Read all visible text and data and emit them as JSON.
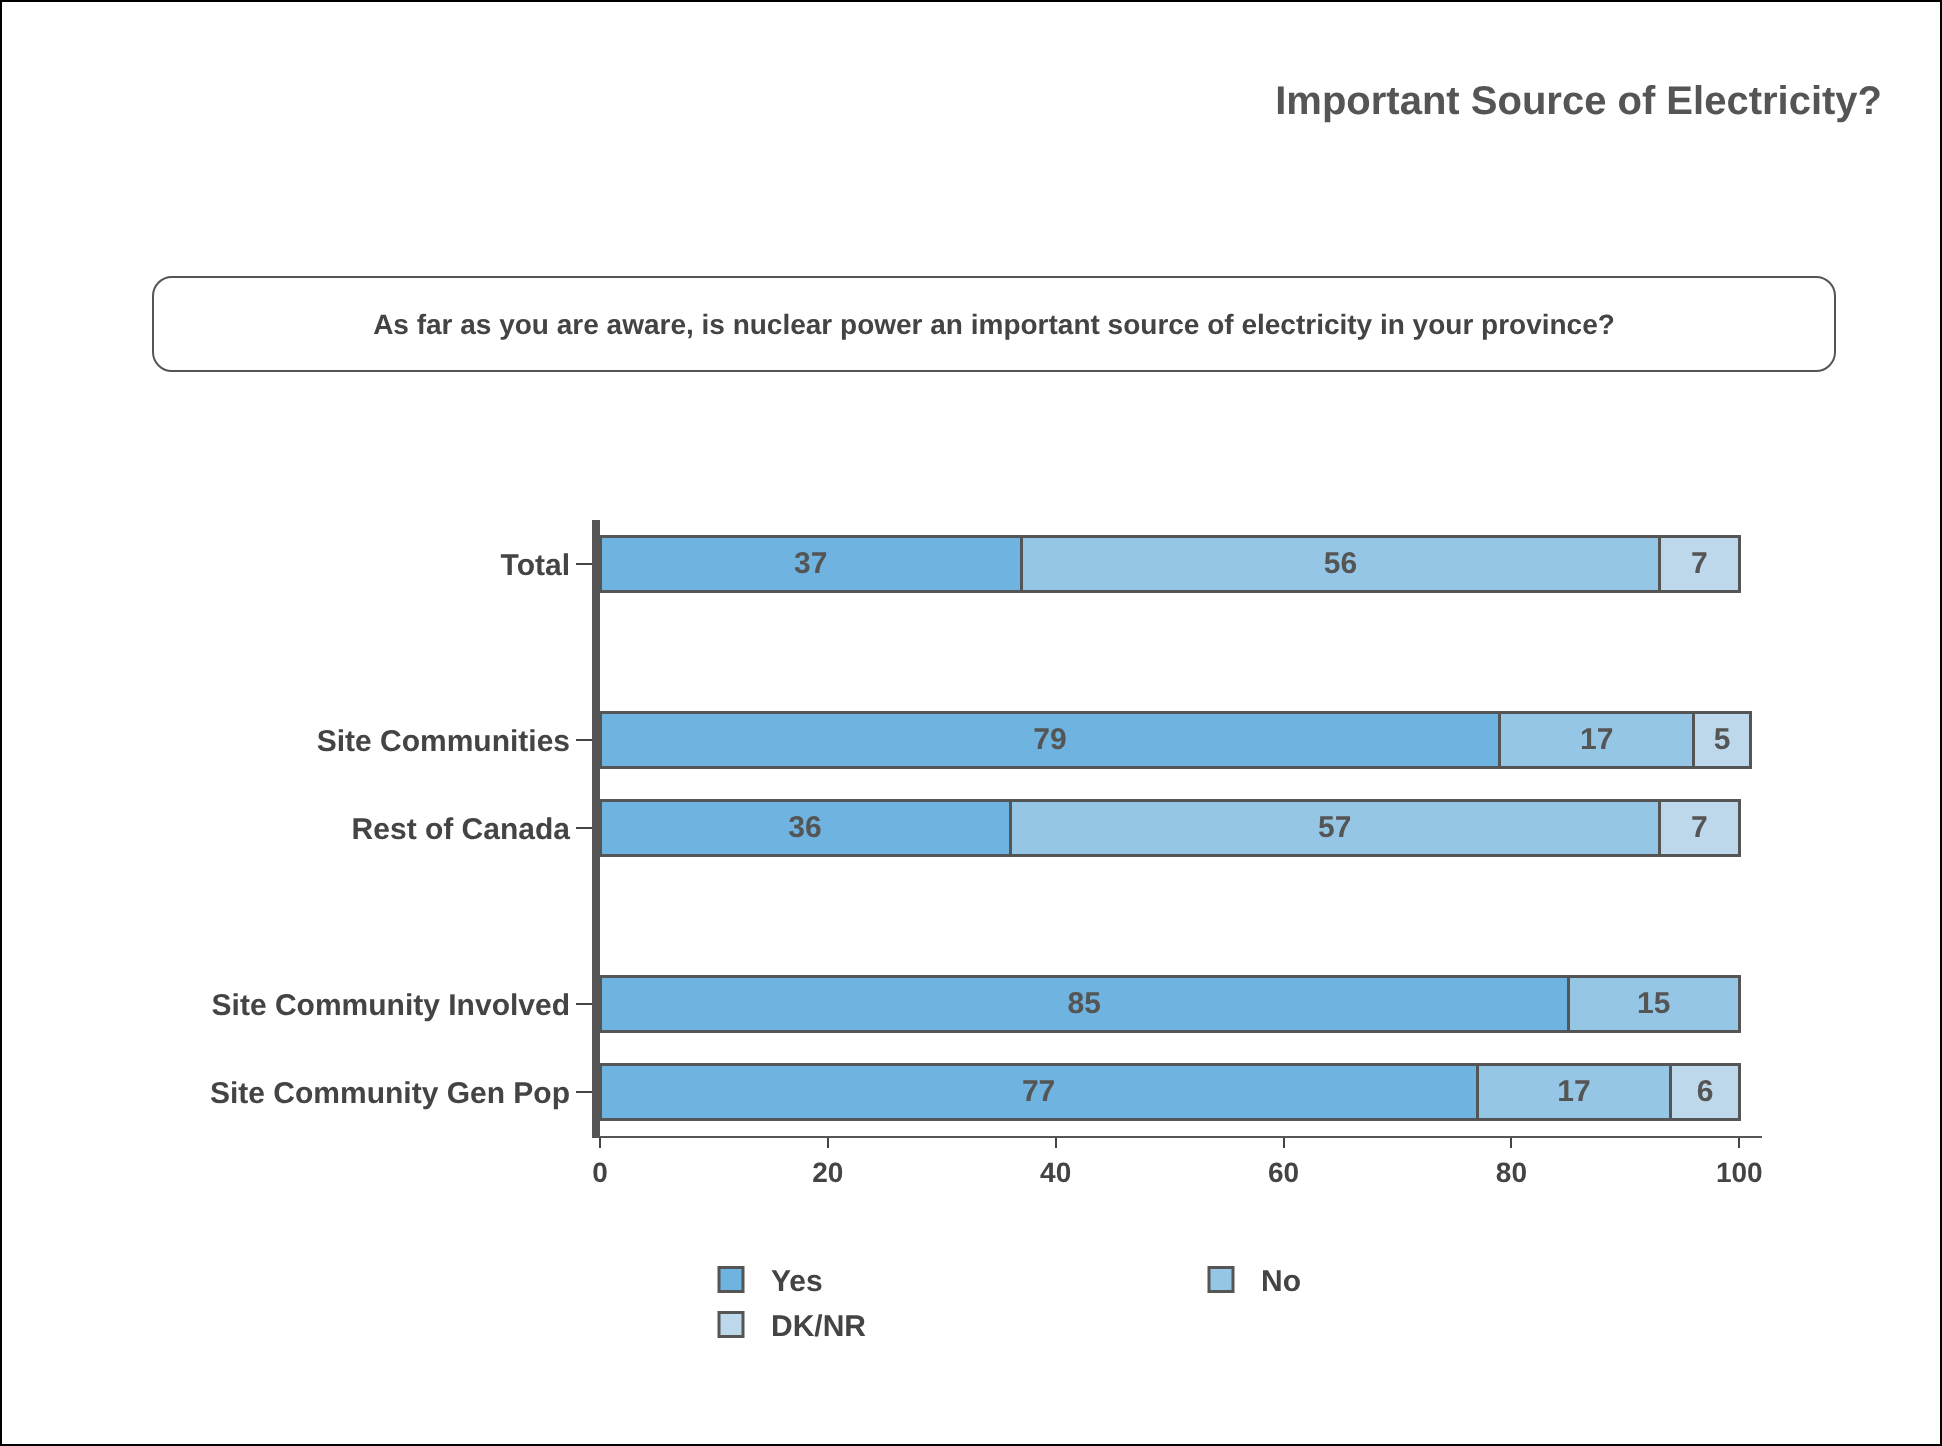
{
  "chart_data": {
    "type": "bar",
    "orientation": "horizontal",
    "stacked": true,
    "title": "Important Source of Electricity?",
    "subtitle": "As far as you are aware, is nuclear power an important source of electricity in your province?",
    "categories": [
      "Total",
      null,
      "Site Communities",
      "Rest of Canada",
      null,
      "Site Community Involved",
      "Site Community Gen Pop"
    ],
    "series": [
      {
        "name": "Yes",
        "color": "#6fb3e0",
        "values": [
          37,
          null,
          79,
          36,
          null,
          85,
          77
        ]
      },
      {
        "name": "No",
        "color": "#96c6e6",
        "values": [
          56,
          null,
          17,
          57,
          null,
          15,
          17
        ]
      },
      {
        "name": "DK/NR",
        "color": "#bcd8ea",
        "values": [
          7,
          null,
          5,
          7,
          null,
          null,
          6
        ]
      }
    ],
    "xlim": [
      0,
      102
    ],
    "xticks": [
      0,
      20,
      40,
      60,
      80,
      100
    ],
    "grid": false,
    "legend": "bottom",
    "data_labels": true
  }
}
